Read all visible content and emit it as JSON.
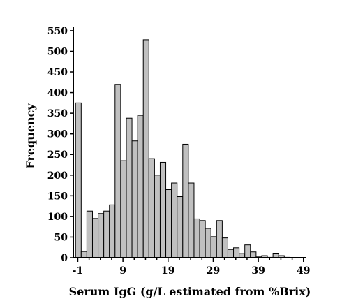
{
  "chart_data": {
    "type": "bar",
    "title": "",
    "xlabel": "Serum IgG (g/L estimated from %Brix)",
    "ylabel": "Frequency",
    "xlim": [
      -2,
      49.5
    ],
    "ylim": [
      0,
      560
    ],
    "xticks": [
      -1,
      9,
      19,
      29,
      39,
      49
    ],
    "yticks": [
      0,
      50,
      100,
      150,
      200,
      250,
      300,
      350,
      400,
      450,
      500,
      550
    ],
    "bin_width": 1.25,
    "bin_start": -1.5,
    "grid": false,
    "values": [
      375,
      15,
      113,
      95,
      107,
      113,
      128,
      420,
      235,
      338,
      283,
      345,
      528,
      240,
      200,
      231,
      165,
      181,
      148,
      275,
      181,
      94,
      90,
      71,
      51,
      90,
      48,
      20,
      24,
      10,
      31,
      14,
      2,
      5,
      1,
      11,
      5,
      1
    ]
  }
}
